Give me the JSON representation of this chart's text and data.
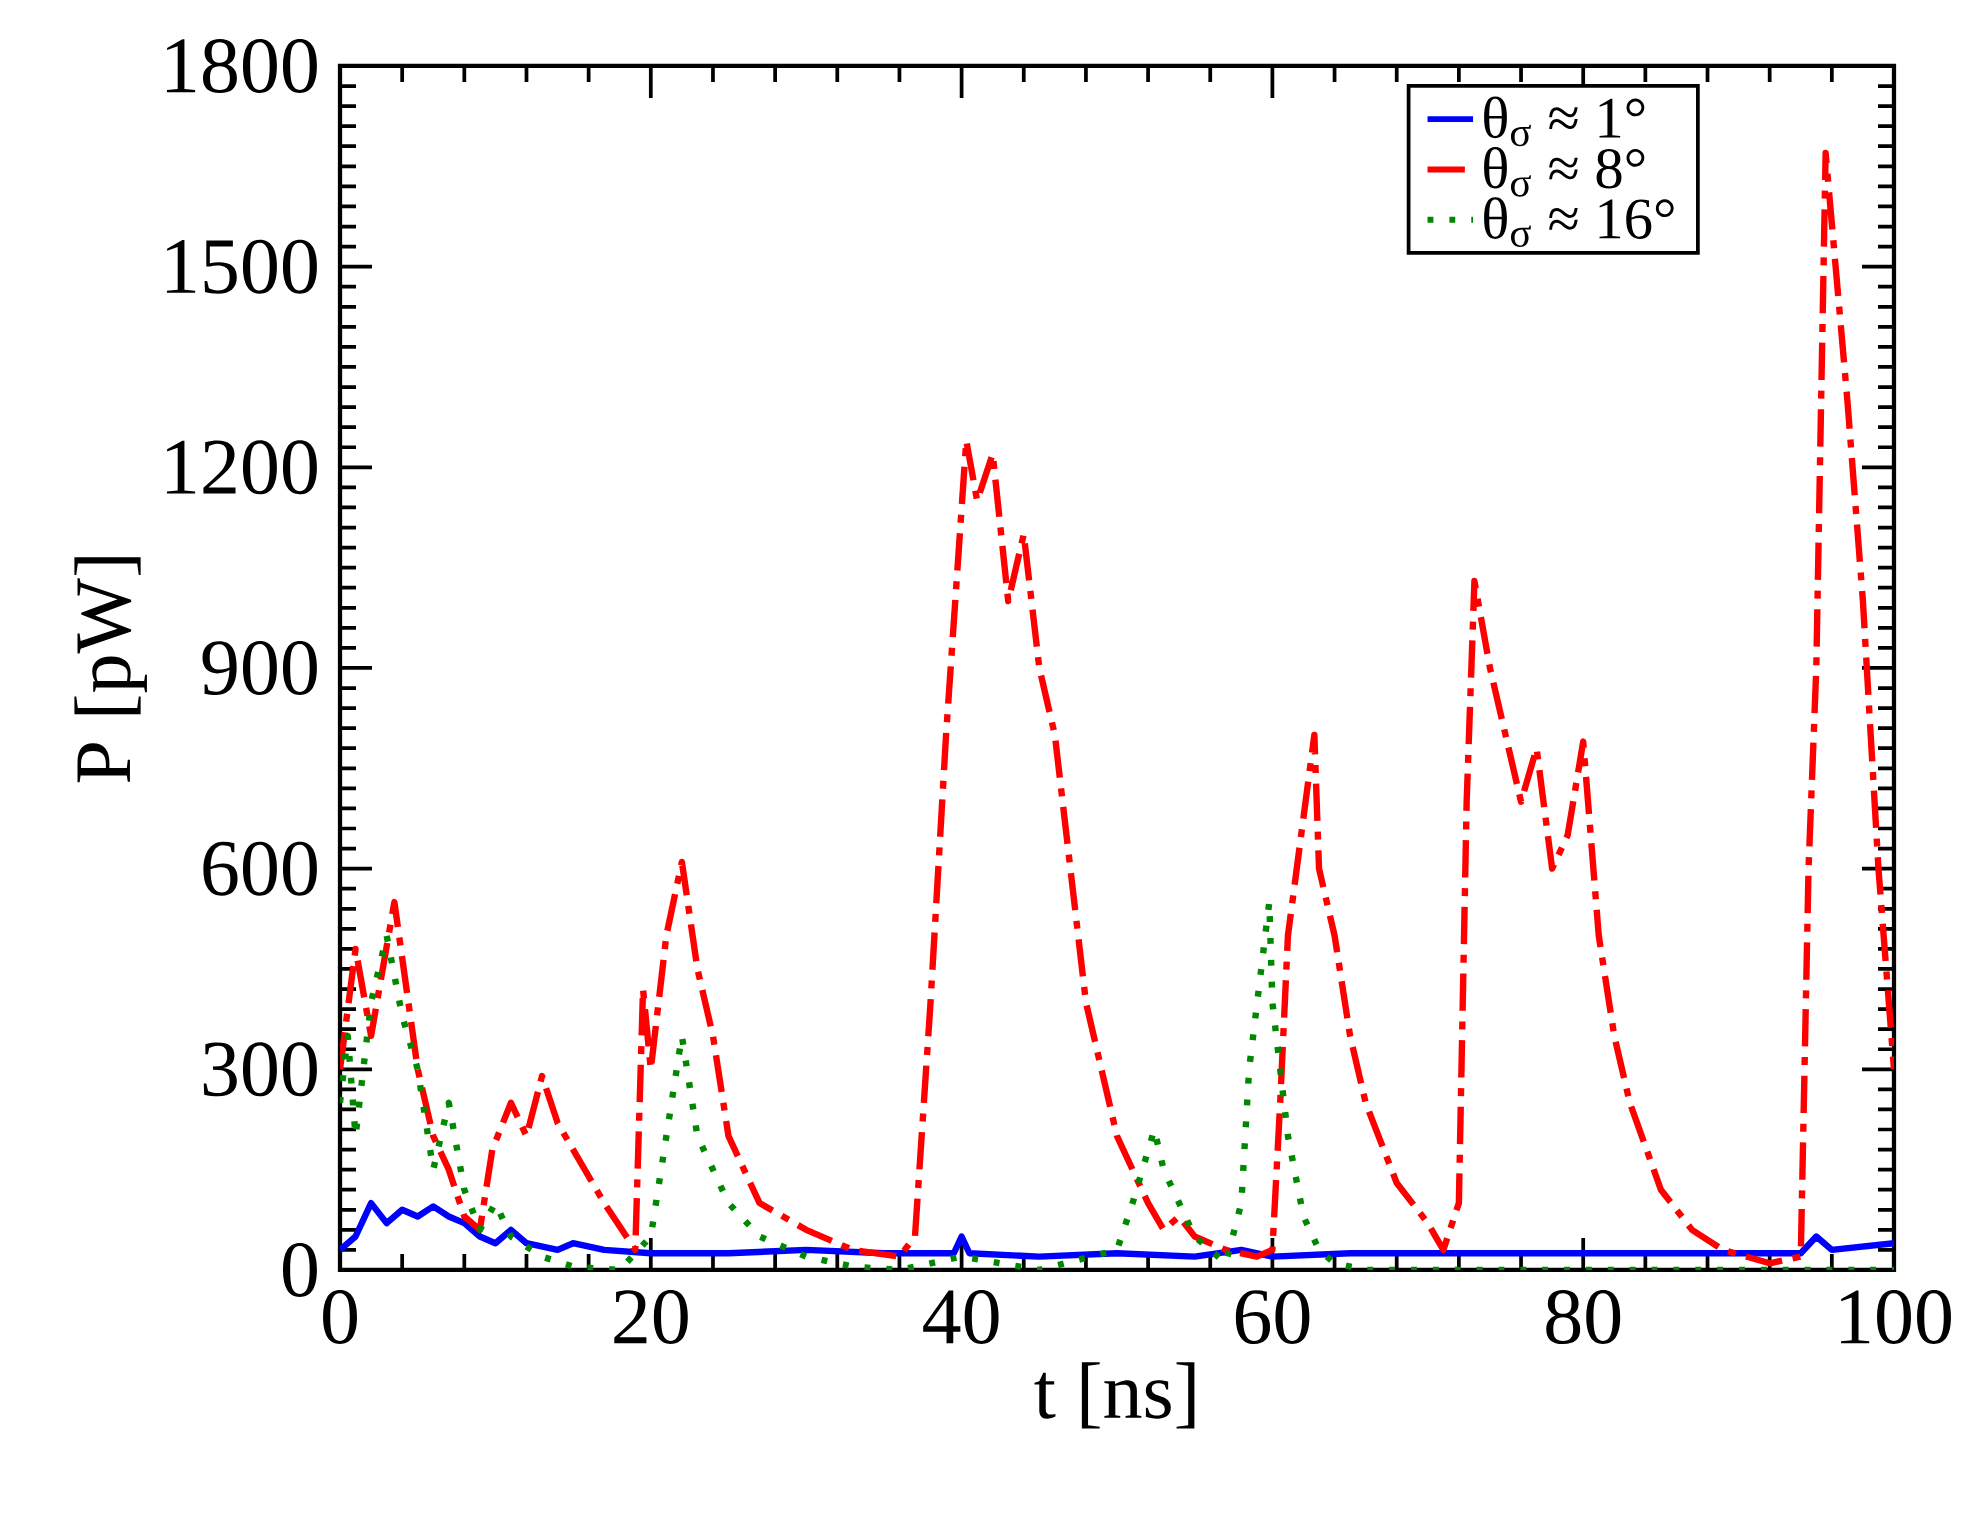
{
  "chart_data": {
    "type": "line",
    "xlabel": "t  [ns]",
    "ylabel": "P  [pW]",
    "xlim": [
      0,
      100
    ],
    "ylim": [
      0,
      1800
    ],
    "xticks": [
      0,
      20,
      40,
      60,
      80,
      100
    ],
    "yticks": [
      0,
      300,
      600,
      900,
      1200,
      1500,
      1800
    ],
    "legend": "top right",
    "series": [
      {
        "name": "θ$_{σ}$ ≈ 1°",
        "color": "#0000ff",
        "line_style": "solid",
        "x": [
          0,
          1,
          2,
          3,
          4,
          5,
          6,
          7,
          8,
          9,
          10,
          11,
          12,
          14,
          15,
          17,
          20,
          25,
          30,
          35,
          39.5,
          40,
          40.5,
          45,
          50,
          55,
          58,
          60,
          65,
          70,
          80,
          90,
          94,
          95,
          96,
          100
        ],
        "values": [
          30,
          50,
          100,
          70,
          90,
          80,
          95,
          80,
          70,
          50,
          40,
          60,
          40,
          30,
          40,
          30,
          25,
          25,
          30,
          25,
          25,
          50,
          25,
          20,
          25,
          20,
          30,
          20,
          25,
          25,
          25,
          25,
          25,
          50,
          30,
          40
        ]
      },
      {
        "name": "θ$_{σ}$ ≈ 8°",
        "color": "#ff0000",
        "line_style": "dashed",
        "x": [
          0,
          1,
          2,
          3.5,
          5,
          6,
          7,
          8,
          9,
          9.8,
          11,
          12,
          13,
          14,
          15,
          17,
          19,
          19.5,
          20,
          21,
          22,
          23,
          24,
          25,
          27,
          30,
          33,
          36,
          37,
          38,
          39,
          40.3,
          41,
          42,
          43,
          44,
          45,
          46,
          47,
          48,
          49,
          50,
          51,
          52,
          53,
          54,
          55,
          57,
          59,
          60,
          60.5,
          61,
          62.7,
          63,
          64,
          65,
          66,
          68,
          70,
          71,
          72,
          72.5,
          73,
          74,
          75,
          76,
          77,
          78,
          79,
          80,
          81,
          82,
          83,
          85,
          87,
          89,
          92,
          94,
          94.5,
          95,
          95.6,
          97,
          98,
          99,
          100
        ],
        "values": [
          300,
          480,
          350,
          550,
          300,
          200,
          150,
          80,
          60,
          180,
          250,
          200,
          290,
          220,
          180,
          100,
          30,
          420,
          300,
          500,
          610,
          450,
          350,
          200,
          100,
          60,
          30,
          20,
          50,
          400,
          800,
          1240,
          1150,
          1220,
          1000,
          1100,
          900,
          800,
          600,
          400,
          300,
          200,
          150,
          100,
          60,
          80,
          50,
          30,
          20,
          30,
          250,
          500,
          800,
          600,
          500,
          350,
          250,
          130,
          70,
          30,
          100,
          700,
          1030,
          900,
          800,
          700,
          780,
          600,
          650,
          790,
          500,
          350,
          250,
          120,
          60,
          30,
          10,
          20,
          600,
          900,
          1670,
          1300,
          1000,
          600,
          300
        ]
      },
      {
        "name": "θ$_{σ}$ ≈ 16°",
        "color": "#008800",
        "line_style": "dotted",
        "x": [
          0,
          0.5,
          1,
          2,
          3,
          4,
          5,
          6,
          7,
          8,
          9,
          10,
          11,
          13,
          15,
          18,
          20,
          21,
          22,
          23,
          24,
          25,
          27,
          30,
          33,
          36,
          40,
          45,
          50,
          51,
          52.4,
          53,
          54,
          55,
          56,
          57,
          58,
          58.5,
          59.8,
          60,
          61,
          62,
          63,
          64,
          66,
          70,
          80,
          90,
          100
        ],
        "values": [
          250,
          350,
          200,
          400,
          500,
          380,
          300,
          150,
          250,
          120,
          60,
          100,
          50,
          20,
          5,
          0,
          50,
          200,
          350,
          200,
          150,
          100,
          50,
          20,
          5,
          0,
          20,
          0,
          30,
          100,
          210,
          150,
          100,
          50,
          30,
          10,
          100,
          300,
          550,
          400,
          200,
          80,
          30,
          10,
          0,
          0,
          0,
          0,
          0
        ]
      }
    ]
  }
}
